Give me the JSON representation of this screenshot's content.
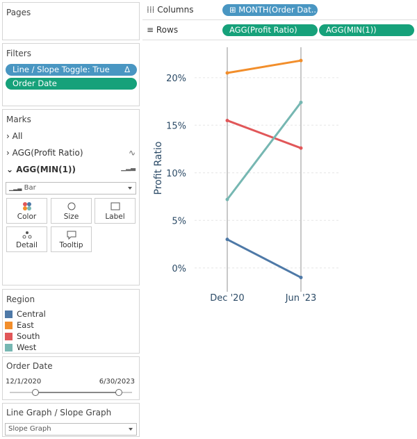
{
  "pages": {
    "title": "Pages"
  },
  "shelves": {
    "columns": {
      "label": "Columns",
      "pills": [
        "MONTH(Order Dat.."
      ]
    },
    "rows": {
      "label": "Rows",
      "pills": [
        "AGG(Profit Ratio)",
        "AGG(MIN(1))"
      ]
    }
  },
  "filters": {
    "title": "Filters",
    "pills": [
      "Line / Slope Toggle: True",
      "Order Date"
    ]
  },
  "marks": {
    "title": "Marks",
    "cards": [
      "All",
      "AGG(Profit Ratio)",
      "AGG(MIN(1))"
    ],
    "mark_type": "Bar",
    "buttons": [
      "Color",
      "Size",
      "Label",
      "Detail",
      "Tooltip"
    ]
  },
  "region_legend": {
    "title": "Region"
  },
  "order_date_filter": {
    "title": "Order Date",
    "start": "12/1/2020",
    "end": "6/30/2023"
  },
  "toggle": {
    "title": "Line Graph / Slope Graph",
    "value": "Slope Graph"
  },
  "chart_data": {
    "type": "line",
    "y_label": "Profit Ratio",
    "categories": [
      "Dec '20",
      "Jun '23"
    ],
    "series": [
      {
        "name": "Central",
        "color": "#4e79a7",
        "values": [
          3.0,
          -1.0
        ]
      },
      {
        "name": "East",
        "color": "#f28e2b",
        "values": [
          20.5,
          21.8
        ]
      },
      {
        "name": "South",
        "color": "#e15759",
        "values": [
          15.5,
          12.6
        ]
      },
      {
        "name": "West",
        "color": "#76b7b2",
        "values": [
          7.2,
          17.4
        ]
      }
    ],
    "ylim": [
      -2.5,
      23.2
    ],
    "yticks": [
      {
        "value": 0,
        "label": "0%"
      },
      {
        "value": 5,
        "label": "5%"
      },
      {
        "value": 10,
        "label": "10%"
      },
      {
        "value": 15,
        "label": "15%"
      },
      {
        "value": 20,
        "label": "20%"
      }
    ],
    "grid": true
  }
}
